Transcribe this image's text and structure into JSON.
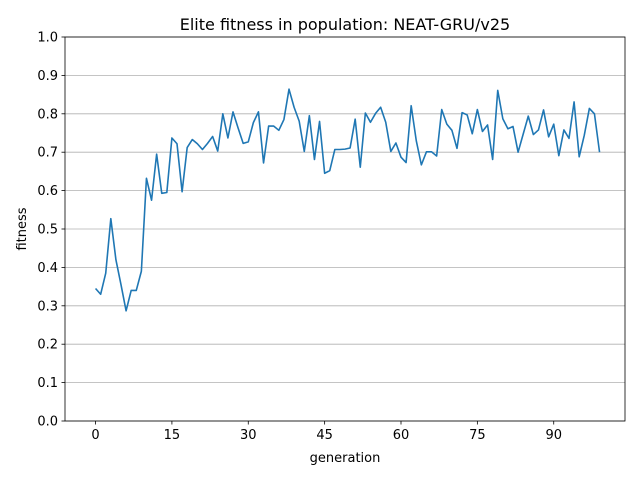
{
  "chart_data": {
    "type": "line",
    "title": "Elite fitness in population: NEAT-GRU/v25",
    "xlabel": "generation",
    "ylabel": "fitness",
    "xlim": [
      -6,
      104
    ],
    "ylim": [
      0.0,
      1.0
    ],
    "x_ticks": [
      0,
      15,
      30,
      45,
      60,
      75,
      90
    ],
    "y_ticks": [
      0.0,
      0.1,
      0.2,
      0.3,
      0.4,
      0.5,
      0.6,
      0.7,
      0.8,
      0.9,
      1.0
    ],
    "x_tick_labels": [
      "0",
      "15",
      "30",
      "45",
      "60",
      "75",
      "90"
    ],
    "y_tick_labels": [
      "0.0",
      "0.1",
      "0.2",
      "0.3",
      "0.4",
      "0.5",
      "0.6",
      "0.7",
      "0.8",
      "0.9",
      "1.0"
    ],
    "grid": "horizontal",
    "series": [
      {
        "color": "#1f77b4",
        "x": [
          0,
          1,
          2,
          3,
          4,
          5,
          6,
          7,
          8,
          9,
          10,
          11,
          12,
          13,
          14,
          15,
          16,
          17,
          18,
          19,
          20,
          21,
          22,
          23,
          24,
          25,
          26,
          27,
          28,
          29,
          30,
          31,
          32,
          33,
          34,
          35,
          36,
          37,
          38,
          39,
          40,
          41,
          42,
          43,
          44,
          45,
          46,
          47,
          48,
          49,
          50,
          51,
          52,
          53,
          54,
          55,
          56,
          57,
          58,
          59,
          60,
          61,
          62,
          63,
          64,
          65,
          66,
          67,
          68,
          69,
          70,
          71,
          72,
          73,
          74,
          75,
          76,
          77,
          78,
          79,
          80,
          81,
          82,
          83,
          84,
          85,
          86,
          87,
          88,
          89,
          90,
          91,
          92,
          93,
          94,
          95,
          96,
          97,
          98,
          99
        ],
        "y": [
          0.345,
          0.33,
          0.385,
          0.527,
          0.42,
          0.355,
          0.287,
          0.34,
          0.34,
          0.39,
          0.632,
          0.575,
          0.695,
          0.593,
          0.595,
          0.737,
          0.722,
          0.597,
          0.712,
          0.733,
          0.722,
          0.707,
          0.723,
          0.741,
          0.703,
          0.8,
          0.737,
          0.805,
          0.763,
          0.723,
          0.727,
          0.777,
          0.805,
          0.672,
          0.768,
          0.768,
          0.757,
          0.785,
          0.864,
          0.817,
          0.781,
          0.702,
          0.795,
          0.681,
          0.78,
          0.645,
          0.652,
          0.707,
          0.707,
          0.708,
          0.711,
          0.786,
          0.661,
          0.802,
          0.778,
          0.801,
          0.817,
          0.778,
          0.702,
          0.724,
          0.687,
          0.673,
          0.821,
          0.73,
          0.667,
          0.701,
          0.701,
          0.69,
          0.811,
          0.773,
          0.757,
          0.71,
          0.803,
          0.797,
          0.748,
          0.811,
          0.754,
          0.771,
          0.681,
          0.861,
          0.787,
          0.761,
          0.767,
          0.7,
          0.747,
          0.794,
          0.746,
          0.758,
          0.81,
          0.74,
          0.773,
          0.691,
          0.758,
          0.736,
          0.831,
          0.688,
          0.744,
          0.814,
          0.8,
          0.7
        ]
      }
    ]
  }
}
